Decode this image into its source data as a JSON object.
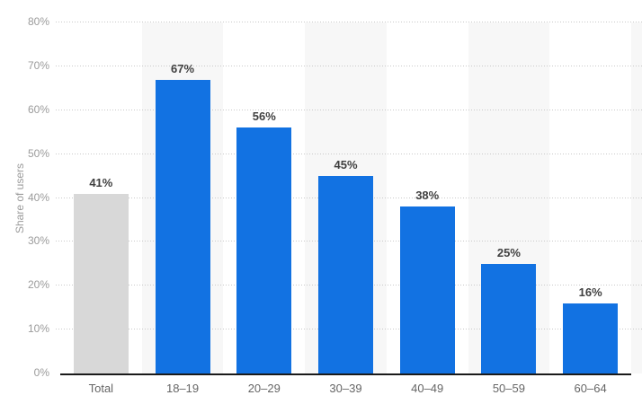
{
  "chart_data": {
    "type": "bar",
    "title": "",
    "xlabel": "",
    "ylabel": "Share of users",
    "categories": [
      "Total",
      "18–19",
      "20–29",
      "30–39",
      "40–49",
      "50–59",
      "60–64"
    ],
    "values": [
      41,
      67,
      56,
      45,
      38,
      25,
      16
    ],
    "value_labels": [
      "41%",
      "67%",
      "56%",
      "45%",
      "38%",
      "25%",
      "16%"
    ],
    "ylim": [
      0,
      80
    ],
    "yticks": [
      0,
      10,
      20,
      30,
      40,
      50,
      60,
      70,
      80
    ],
    "ytick_labels": [
      "0%",
      "10%",
      "20%",
      "30%",
      "40%",
      "50%",
      "60%",
      "70%",
      "80%"
    ],
    "grid": "horizontal dotted",
    "legend_position": "none",
    "colors": {
      "bars": [
        "#d8d8d8",
        "#1272e2",
        "#1272e2",
        "#1272e2",
        "#1272e2",
        "#1272e2",
        "#1272e2"
      ],
      "total_bar_gray": "#d8d8d8",
      "primary_blue": "#1272e2",
      "column_band": "#f7f7f7",
      "gridline": "#c9c9c9",
      "axis_line": "#1a1a1a",
      "tick_text": "#9b9b9b",
      "category_text": "#666666",
      "value_text": "#404040"
    }
  }
}
